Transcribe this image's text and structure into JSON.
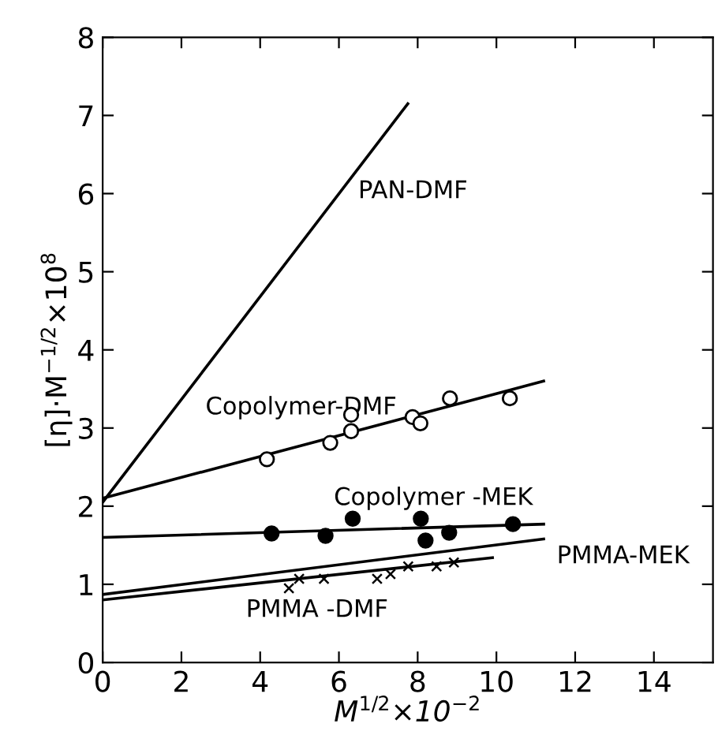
{
  "chart_data": {
    "type": "line",
    "xlabel": "M$^{1/2}$×10$^{−2}$",
    "ylabel": "[η]·M$^{−1/2}$×10$^{8}$",
    "xlim": [
      0,
      15.5
    ],
    "ylim": [
      0,
      8
    ],
    "xticks": [
      0,
      2,
      4,
      6,
      8,
      10,
      12,
      14
    ],
    "yticks": [
      0,
      1,
      2,
      3,
      4,
      5,
      6,
      7,
      8
    ],
    "grid": false,
    "legend": false,
    "marker": "none",
    "line_style": "solid",
    "series": [
      {
        "name": "PAN-DMF",
        "color": "#000000",
        "x": [
          0,
          7.75
        ],
        "values": [
          2.05,
          7.15
        ]
      },
      {
        "name": "Copolymer-DMF",
        "color": "#000000",
        "x": [
          0,
          11.2
        ],
        "values": [
          2.1,
          3.6
        ]
      },
      {
        "type": "scatter",
        "marker": "circle",
        "color": "#ffffff",
        "x": [
          4.17,
          5.78,
          6.31,
          6.31,
          7.87,
          8.07,
          8.82,
          10.34
        ],
        "values": [
          2.6,
          2.81,
          3.17,
          2.96,
          3.14,
          3.06,
          3.38,
          3.38
        ]
      },
      {
        "name": "Copolymer -MEK",
        "color": "#000000",
        "x": [
          0,
          11.2
        ],
        "values": [
          1.6,
          1.77
        ]
      },
      {
        "type": "scatter",
        "marker": "circle",
        "color": "#000000",
        "x": [
          4.29,
          5.66,
          6.35,
          8.08,
          8.2,
          8.8,
          10.42
        ],
        "values": [
          1.65,
          1.62,
          1.84,
          1.84,
          1.56,
          1.66,
          1.77
        ]
      },
      {
        "name": "PMMA-MEK",
        "color": "#000000",
        "x": [
          0,
          11.2
        ],
        "values": [
          0.87,
          1.58
        ]
      },
      {
        "name": "PMMA -DMF",
        "color": "#000000",
        "x": [
          0,
          9.9
        ],
        "values": [
          0.8,
          1.34
        ]
      },
      {
        "type": "scatter",
        "marker": "cross",
        "color": "#000000",
        "x": [
          4.73,
          4.99,
          5.62,
          6.97,
          7.31,
          7.76,
          8.48,
          8.92
        ],
        "values": [
          0.95,
          1.07,
          1.07,
          1.07,
          1.13,
          1.23,
          1.23,
          1.28
        ]
      }
    ]
  }
}
